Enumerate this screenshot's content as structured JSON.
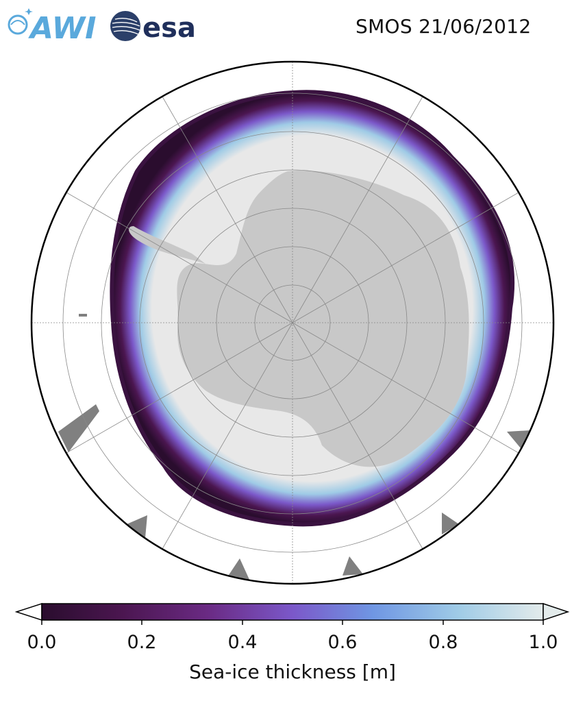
{
  "header": {
    "logo_awi_text": "AWI",
    "logo_esa_text": "esa",
    "title": "SMOS 21/06/2012"
  },
  "map": {
    "projection": "south-polar-stereographic",
    "colors": {
      "land": "#c8c8c8",
      "no_data_ice": "#e8e8e8",
      "other_land": "#808080",
      "ocean": "#ffffff",
      "grid": "#888888",
      "border": "#000000"
    }
  },
  "colorbar": {
    "label": "Sea-ice thickness [m]",
    "ticks": [
      "0.0",
      "0.2",
      "0.4",
      "0.6",
      "0.8",
      "1.0"
    ],
    "range": [
      0.0,
      1.0
    ],
    "extend": "both",
    "colormap_stops": [
      "#2a0d2e",
      "#4b1650",
      "#6a2a83",
      "#7b58c9",
      "#6f96e3",
      "#9fcbe6",
      "#e3ebeb"
    ]
  }
}
